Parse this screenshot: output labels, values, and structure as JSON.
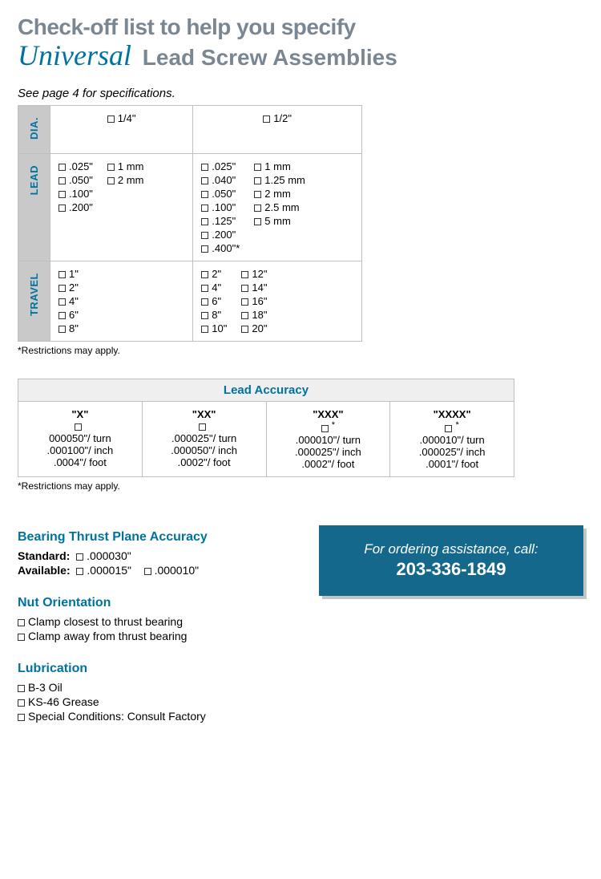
{
  "title_line1": "Check-off list to help you specify",
  "title_universal": "Universal",
  "title_line2_rest": " Lead Screw Assemblies",
  "see_page": "See page 4 for specifications.",
  "rows": {
    "dia": {
      "label": "DIA.",
      "opt1": "1/4\"",
      "opt2": "1/2\""
    },
    "lead": {
      "label": "LEAD",
      "q_in": [
        ".025\"",
        ".050\"",
        ".100\"",
        ".200\""
      ],
      "q_mm": [
        "1 mm",
        "2 mm"
      ],
      "h_in": [
        ".025\"",
        ".040\"",
        ".050\"",
        ".100\"",
        ".125\"",
        ".200\"",
        ".400\"*"
      ],
      "h_mm": [
        "1 mm",
        "1.25 mm",
        "2 mm",
        "2.5 mm",
        "5 mm"
      ]
    },
    "travel": {
      "label": "TRAVEL",
      "q": [
        "1\"",
        "2\"",
        "4\"",
        "6\"",
        "8\""
      ],
      "h1": [
        "2\"",
        "4\"",
        "6\"",
        "8\"",
        "10\""
      ],
      "h2": [
        "12\"",
        "14\"",
        "16\"",
        "18\"",
        "20\""
      ]
    }
  },
  "restrict": "*Restrictions may apply.",
  "accuracy": {
    "header": "Lead Accuracy",
    "cols": [
      {
        "label": "\"X\"",
        "star": false,
        "l1": "000050\"/ turn",
        "l2": ".000100\"/ inch",
        "l3": ".0004\"/ foot"
      },
      {
        "label": "\"XX\"",
        "star": false,
        "l1": ".000025\"/ turn",
        "l2": ".000050\"/ inch",
        "l3": ".0002\"/ foot"
      },
      {
        "label": "\"XXX\"",
        "star": true,
        "l1": ".000010\"/ turn",
        "l2": ".000025\"/ inch",
        "l3": ".0002\"/ foot"
      },
      {
        "label": "\"XXXX\"",
        "star": true,
        "l1": ".000010\"/ turn",
        "l2": ".000025\"/ inch",
        "l3": ".0001\"/ foot"
      }
    ]
  },
  "btpa": {
    "header": "Bearing Thrust Plane Accuracy",
    "std_label": "Standard",
    "std_val": ".000030\"",
    "avail_label": "Available",
    "avail_v1": ".000015\"",
    "avail_v2": ".000010\""
  },
  "nut": {
    "header": "Nut Orientation",
    "o1": "Clamp closest to thrust bearing",
    "o2": "Clamp away from thrust bearing"
  },
  "lub": {
    "header": "Lubrication",
    "o1": "B-3 Oil",
    "o2": "KS-46 Grease",
    "o3": "Special Conditions: Consult Factory"
  },
  "call": {
    "l1": "For ordering assistance, call:",
    "l2": "203-336-1849"
  }
}
